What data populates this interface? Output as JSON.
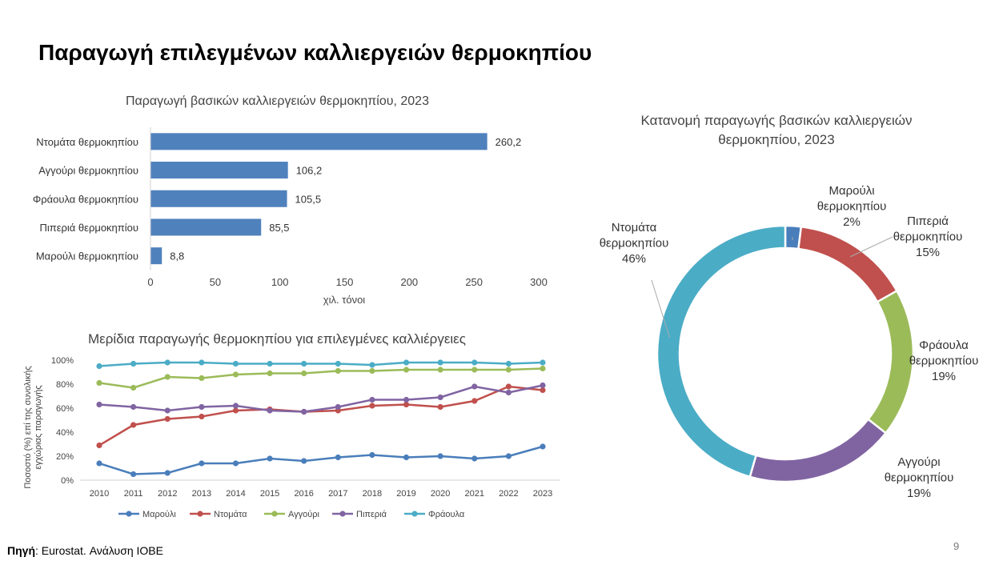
{
  "page": {
    "title": "Παραγωγή επιλεγμένων καλλιεργειών θερμοκηπίου",
    "source_label": "Πηγή",
    "source_text": ": Eurostat. Ανάλυση ΙΟΒΕ",
    "page_number": "9"
  },
  "colors": {
    "bar": "#4f81bd",
    "marouli": "#4a7ebb",
    "ntomata": "#c0504d",
    "aggouri": "#9bbb59",
    "piperia": "#8064a2",
    "fraoula": "#4bacc6"
  },
  "chart_data": [
    {
      "type": "bar",
      "orientation": "horizontal",
      "title": "Παραγωγή βασικών καλλιεργειών θερμοκηπίου, 2023",
      "categories": [
        "Ντομάτα θερμοκηπίου",
        "Αγγούρι θερμοκηπίου",
        "Φράουλα θερμοκηπίου",
        "Πιπεριά θερμοκηπίου",
        "Μαρούλι θερμοκηπίου"
      ],
      "values": [
        260.2,
        106.2,
        105.5,
        85.5,
        8.8
      ],
      "value_labels": [
        "260,2",
        "106,2",
        "105,5",
        "85,5",
        "8,8"
      ],
      "xlabel": "χιλ. τόνοι",
      "xlim": [
        0,
        300
      ],
      "xticks": [
        0,
        50,
        100,
        150,
        200,
        250,
        300
      ],
      "grid": false
    },
    {
      "type": "pie",
      "variant": "donut",
      "title": "Κατανομή παραγωγής βασικών καλλιεργειών θερμοκηπίου, 2023",
      "slices": [
        {
          "label_lines": [
            "Μαρούλι",
            "θερμοκηπίου"
          ],
          "pct_label": "2%",
          "value": 2,
          "color_key": "marouli"
        },
        {
          "label_lines": [
            "Πιπεριά",
            "θερμοκηπίου"
          ],
          "pct_label": "15%",
          "value": 15,
          "color_key": "ntomata"
        },
        {
          "label_lines": [
            "Φράουλα",
            "θερμοκηπίου"
          ],
          "pct_label": "19%",
          "value": 19,
          "color_key": "aggouri"
        },
        {
          "label_lines": [
            "Αγγούρι",
            "θερμοκηπίου"
          ],
          "pct_label": "19%",
          "value": 19,
          "color_key": "piperia"
        },
        {
          "label_lines": [
            "Ντομάτα",
            "θερμοκηπίου"
          ],
          "pct_label": "46%",
          "value": 46,
          "color_key": "fraoula"
        }
      ]
    },
    {
      "type": "line",
      "title": "Μερίδια παραγωγής θερμοκηπίου για επιλεγμένες καλλιέργειες",
      "ylabel_lines": [
        "Ποσοστό (%) επί της συνολικής",
        "εγχώριας παραγωγής"
      ],
      "x": [
        2010,
        2011,
        2012,
        2013,
        2014,
        2015,
        2016,
        2017,
        2018,
        2019,
        2020,
        2021,
        2022,
        2023
      ],
      "ylim": [
        0,
        100
      ],
      "yticks": [
        "0%",
        "20%",
        "40%",
        "60%",
        "80%",
        "100%"
      ],
      "legend_position": "bottom",
      "series": [
        {
          "name": "Μαρούλι",
          "color_key": "marouli",
          "values": [
            14,
            5,
            6,
            14,
            14,
            18,
            16,
            19,
            21,
            19,
            20,
            18,
            20,
            28
          ]
        },
        {
          "name": "Ντομάτα",
          "color_key": "ntomata",
          "values": [
            29,
            46,
            51,
            53,
            58,
            59,
            57,
            58,
            62,
            63,
            61,
            66,
            78,
            75
          ]
        },
        {
          "name": "Αγγούρι",
          "color_key": "aggouri",
          "values": [
            81,
            77,
            86,
            85,
            88,
            89,
            89,
            91,
            91,
            92,
            92,
            92,
            92,
            93
          ]
        },
        {
          "name": "Πιπεριά",
          "color_key": "piperia",
          "values": [
            63,
            61,
            58,
            61,
            62,
            58,
            57,
            61,
            67,
            67,
            69,
            78,
            73,
            79
          ]
        },
        {
          "name": "Φράουλα",
          "color_key": "fraoula",
          "values": [
            95,
            97,
            98,
            98,
            97,
            97,
            97,
            97,
            96,
            98,
            98,
            98,
            97,
            98
          ]
        }
      ]
    }
  ]
}
